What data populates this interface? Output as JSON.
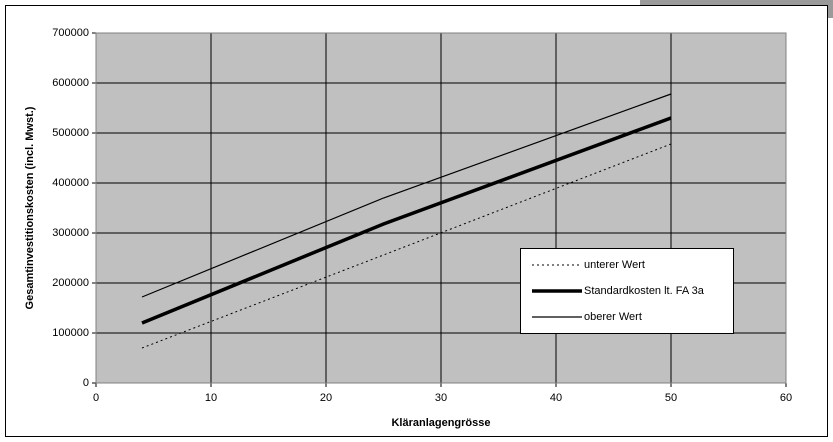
{
  "chart_data": {
    "type": "line",
    "x_label": "Kläranlagengrösse",
    "y_label": "Gesamtinvestitionskosten (incl. Mwst.)",
    "x": [
      4,
      25,
      50
    ],
    "series": [
      {
        "name": "unterer Wert",
        "color": "#000000",
        "line_width": 1,
        "dash": "2,3",
        "values": [
          70000,
          256000,
          478000
        ]
      },
      {
        "name": "Standardkosten lt. FA 3a",
        "color": "#000000",
        "line_width": 3.5,
        "dash": "none",
        "values": [
          120000,
          318000,
          530000
        ]
      },
      {
        "name": "oberer Wert",
        "color": "#000000",
        "line_width": 1.2,
        "dash": "none",
        "values": [
          172000,
          370000,
          578000
        ]
      }
    ],
    "xlim": [
      0,
      60
    ],
    "xticks": [
      0,
      10,
      20,
      30,
      40,
      50,
      60
    ],
    "ylim": [
      0,
      700000
    ],
    "yticks": [
      0,
      100000,
      200000,
      300000,
      400000,
      500000,
      600000,
      700000
    ],
    "grid": true,
    "plot_background": "#c0c0c0",
    "legend": "right"
  }
}
